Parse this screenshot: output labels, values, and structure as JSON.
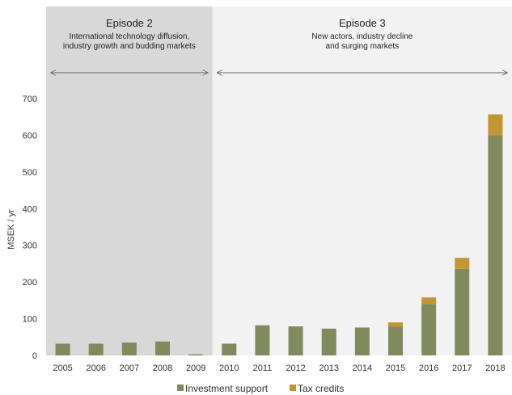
{
  "chart_data": {
    "type": "bar",
    "stacked": true,
    "categories": [
      "2005",
      "2006",
      "2007",
      "2008",
      "2009",
      "2010",
      "2011",
      "2012",
      "2013",
      "2014",
      "2015",
      "2016",
      "2017",
      "2018"
    ],
    "series": [
      {
        "name": "Investment support",
        "color": "#808a5c",
        "values": [
          32,
          32,
          35,
          38,
          3,
          32,
          82,
          79,
          73,
          76,
          79,
          140,
          236,
          600
        ]
      },
      {
        "name": "Tax credits",
        "color": "#c39633",
        "values": [
          0,
          0,
          0,
          0,
          0,
          0,
          0,
          0,
          0,
          0,
          11,
          18,
          30,
          57
        ]
      }
    ],
    "ylabel": "MSEK / yr",
    "ylim": [
      0,
      700
    ],
    "yticks": [
      0,
      100,
      200,
      300,
      400,
      500,
      600,
      700
    ],
    "grid": false,
    "legend": "bottom",
    "episodes": [
      {
        "title": "Episode 2",
        "subtitle_lines": [
          "International technology diffusion,",
          "industry growth and budding markets"
        ],
        "first": "2005",
        "last": "2009",
        "background": "#d8d8d8"
      },
      {
        "title": "Episode 3",
        "subtitle_lines": [
          "New actors, industry decline",
          "and surging markets"
        ],
        "first": "2010",
        "last": "2018",
        "background": "#f2f2f2"
      }
    ]
  }
}
